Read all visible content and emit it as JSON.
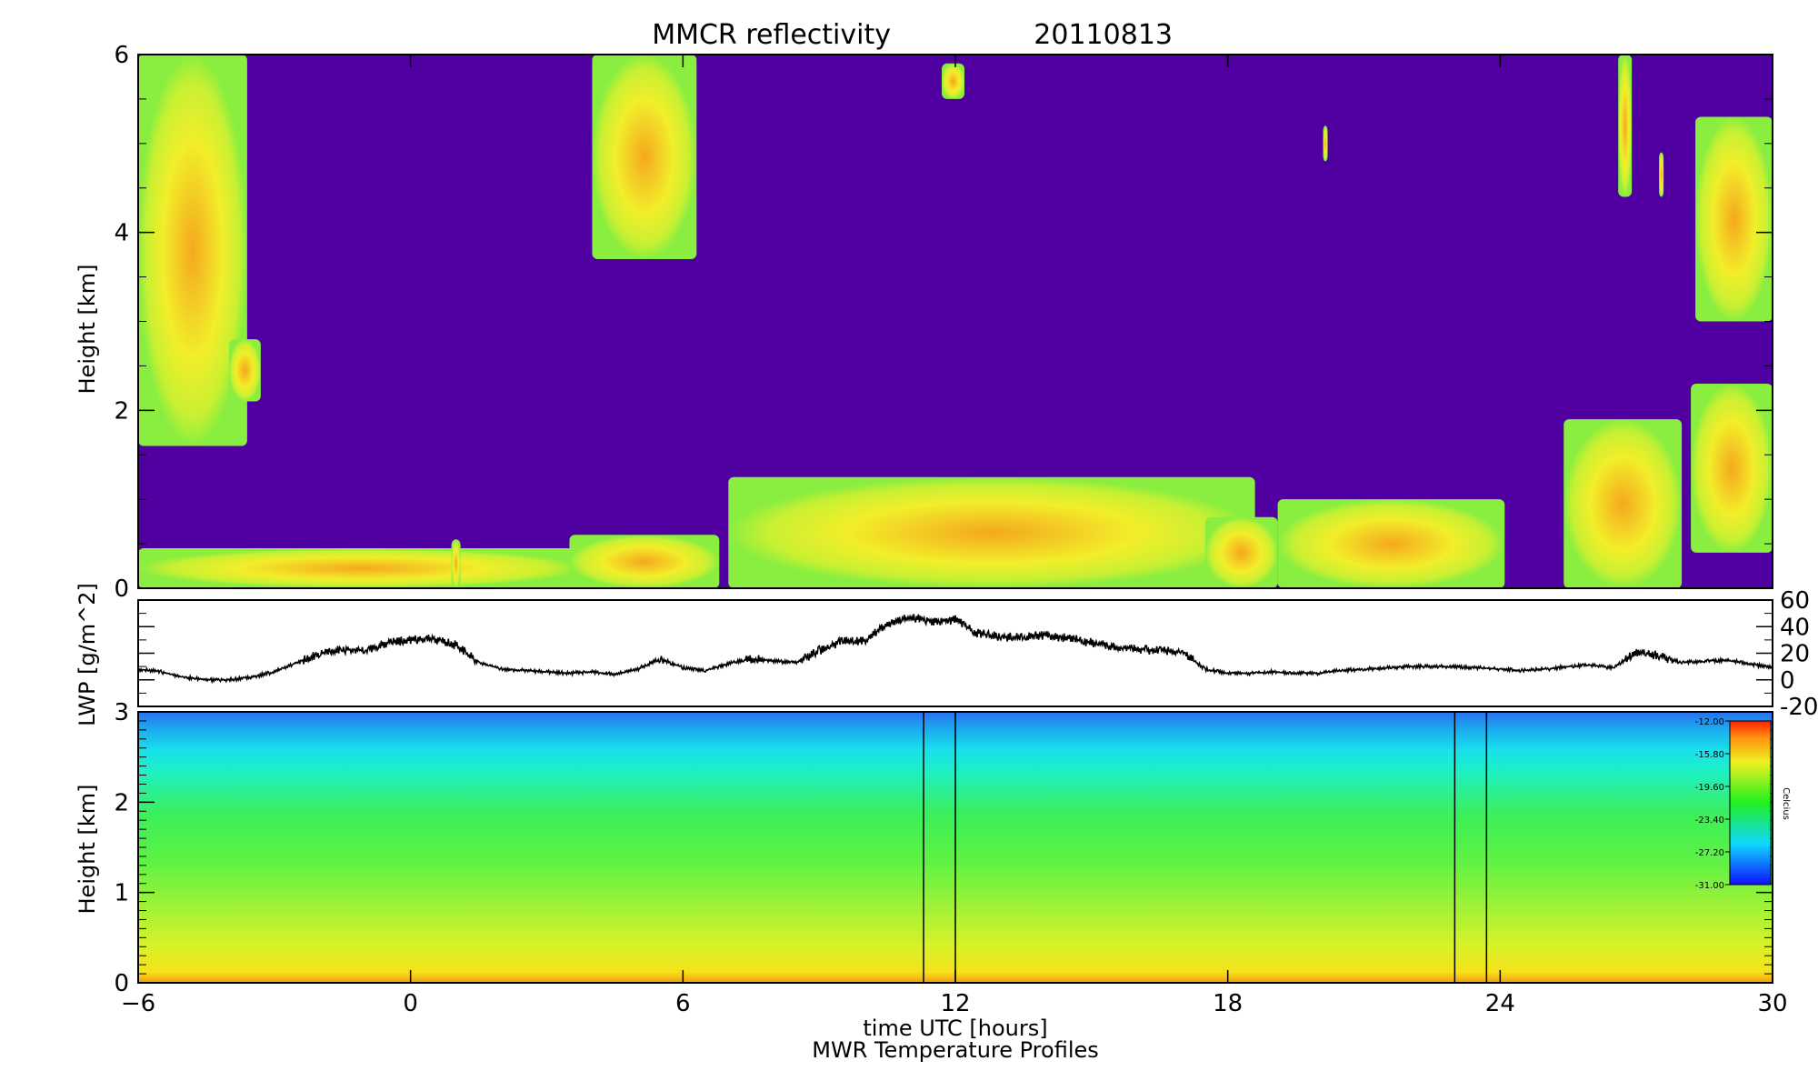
{
  "chart_data": [
    {
      "panel": "reflectivity",
      "type": "heatmap",
      "title": "MMCR reflectivity",
      "date": "20110813",
      "ylabel": "Height [km]",
      "xlabel": "",
      "xlim": [
        -6,
        30
      ],
      "ylim": [
        0,
        6
      ],
      "yticks": [
        "0",
        "2",
        "4",
        "6"
      ],
      "colors": {
        "background": "#5000a0",
        "echo_edge": "#8aee40",
        "echo_mid": "#f2ee2a",
        "echo_core": "#f5a81e"
      },
      "echo_regions": [
        {
          "x": [
            -6,
            -3.6
          ],
          "y": [
            1.6,
            6.0
          ]
        },
        {
          "x": [
            -4.0,
            -3.3
          ],
          "y": [
            2.1,
            2.8
          ]
        },
        {
          "x": [
            4.0,
            6.3
          ],
          "y": [
            3.7,
            6.0
          ]
        },
        {
          "x": [
            11.7,
            12.2
          ],
          "y": [
            5.5,
            5.9
          ]
        },
        {
          "x": [
            20.1,
            20.2
          ],
          "y": [
            4.8,
            5.2
          ]
        },
        {
          "x": [
            26.6,
            26.9
          ],
          "y": [
            4.4,
            6.0
          ]
        },
        {
          "x": [
            27.5,
            27.6
          ],
          "y": [
            4.4,
            4.9
          ]
        },
        {
          "x": [
            28.3,
            30.0
          ],
          "y": [
            3.0,
            5.3
          ]
        },
        {
          "x": [
            -6,
            3.8
          ],
          "y": [
            0.0,
            0.45
          ]
        },
        {
          "x": [
            0.9,
            1.1
          ],
          "y": [
            0.0,
            0.55
          ]
        },
        {
          "x": [
            3.5,
            6.8
          ],
          "y": [
            0.0,
            0.6
          ]
        },
        {
          "x": [
            7.0,
            18.6
          ],
          "y": [
            0.0,
            1.25
          ]
        },
        {
          "x": [
            17.5,
            19.1
          ],
          "y": [
            0.0,
            0.8
          ]
        },
        {
          "x": [
            19.1,
            24.1
          ],
          "y": [
            0.0,
            1.0
          ]
        },
        {
          "x": [
            25.4,
            28.0
          ],
          "y": [
            0.0,
            1.9
          ]
        },
        {
          "x": [
            28.2,
            30.0
          ],
          "y": [
            0.4,
            2.3
          ]
        }
      ]
    },
    {
      "panel": "lwp",
      "type": "line",
      "ylabel": "LWP [g/m^2]",
      "xlim": [
        -6,
        30
      ],
      "ylim": [
        -20,
        60
      ],
      "yticks_right": [
        "60",
        "40",
        "20",
        "0",
        "-20"
      ],
      "series": [
        {
          "x": [
            -6,
            -5.5,
            -5,
            -4.5,
            -4,
            -3.5,
            -3,
            -2.5,
            -2,
            -1.5,
            -1,
            -0.5,
            0,
            0.5,
            1,
            1.5,
            2,
            2.5,
            3,
            3.5,
            4,
            4.5,
            5,
            5.5,
            6,
            6.5,
            7,
            7.5,
            8,
            8.5,
            9,
            9.5,
            10,
            10.5,
            11,
            11.5,
            12,
            12.5,
            13,
            13.5,
            14,
            14.5,
            15,
            15.5,
            16,
            16.5,
            17,
            17.5,
            18,
            18.5,
            19,
            19.5,
            20,
            20.5,
            21,
            21.5,
            22,
            22.5,
            23,
            23.5,
            24,
            24.5,
            25,
            25.5,
            26,
            26.5,
            27,
            27.5,
            28,
            28.5,
            29,
            29.5,
            30
          ],
          "values": [
            8,
            6,
            2,
            0,
            0,
            2,
            6,
            13,
            20,
            23,
            22,
            28,
            30,
            31,
            26,
            13,
            8,
            7,
            6,
            5,
            6,
            4,
            8,
            16,
            9,
            7,
            12,
            16,
            14,
            13,
            22,
            29,
            29,
            42,
            47,
            44,
            45,
            35,
            32,
            32,
            34,
            31,
            28,
            25,
            23,
            22,
            21,
            8,
            5,
            5,
            6,
            5,
            5,
            7,
            8,
            9,
            10,
            10,
            10,
            9,
            8,
            7,
            8,
            10,
            11,
            9,
            21,
            18,
            13,
            14,
            15,
            12,
            9
          ]
        }
      ]
    },
    {
      "panel": "mwr-temperature",
      "type": "heatmap",
      "ylabel": "Height [km]",
      "xlabel": "time UTC [hours]",
      "caption": "MWR Temperature Profiles",
      "xlim": [
        -6,
        30
      ],
      "ylim": [
        0,
        3
      ],
      "yticks": [
        "0",
        "1",
        "2",
        "3"
      ],
      "xticks": [
        "−6",
        "0",
        "6",
        "12",
        "18",
        "24",
        "30"
      ],
      "gaps": [
        [
          11.3,
          12.0
        ],
        [
          23.0,
          23.7
        ]
      ],
      "colorbar": {
        "unit": "Celcius",
        "labels": [
          "-12.00",
          "-15.80",
          "-19.60",
          "-23.40",
          "-27.20",
          "-31.00"
        ],
        "range": [
          -31.0,
          -12.0
        ]
      },
      "profile_colors": [
        "#f59a12",
        "#f5e21a",
        "#b8f02c",
        "#5ef244",
        "#3cef58",
        "#1ef0c4",
        "#18e0ec",
        "#2a88f0"
      ]
    }
  ]
}
